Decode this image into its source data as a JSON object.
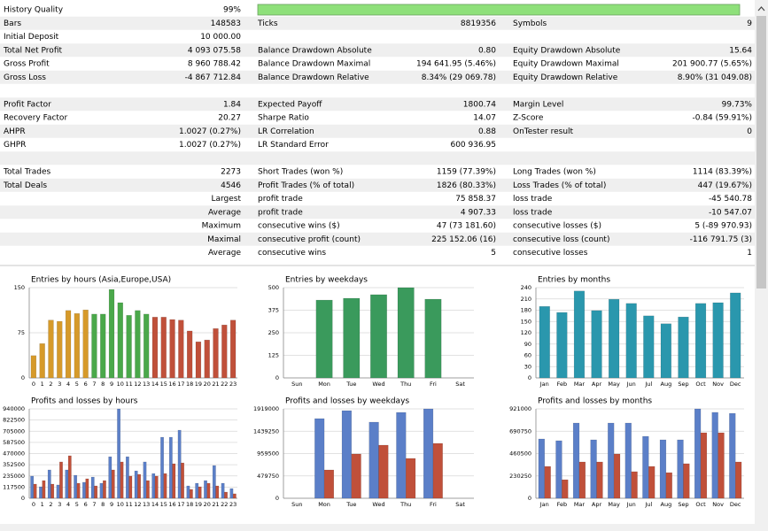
{
  "report": {
    "rows": [
      [
        [
          "History Quality",
          "99%"
        ]
      ],
      [
        [
          "Bars",
          "148583"
        ],
        [
          "Ticks",
          "8819356"
        ],
        [
          "Symbols",
          "9"
        ]
      ],
      [
        [
          "Initial Deposit",
          "10 000.00"
        ]
      ],
      [
        [
          "Total Net Profit",
          "4 093 075.58"
        ],
        [
          "Balance Drawdown Absolute",
          "0.80"
        ],
        [
          "Equity Drawdown Absolute",
          "15.64"
        ]
      ],
      [
        [
          "Gross Profit",
          "8 960 788.42"
        ],
        [
          "Balance Drawdown Maximal",
          "194 641.95 (5.46%)"
        ],
        [
          "Equity Drawdown Maximal",
          "201 900.77 (5.65%)"
        ]
      ],
      [
        [
          "Gross Loss",
          "-4 867 712.84"
        ],
        [
          "Balance Drawdown Relative",
          "8.34% (29 069.78)"
        ],
        [
          "Equity Drawdown Relative",
          "8.90% (31 049.08)"
        ]
      ],
      [],
      [
        [
          "Profit Factor",
          "1.84"
        ],
        [
          "Expected Payoff",
          "1800.74"
        ],
        [
          "Margin Level",
          "99.73%"
        ]
      ],
      [
        [
          "Recovery Factor",
          "20.27"
        ],
        [
          "Sharpe Ratio",
          "14.07"
        ],
        [
          "Z-Score",
          "-0.84 (59.91%)"
        ]
      ],
      [
        [
          "AHPR",
          "1.0027 (0.27%)"
        ],
        [
          "LR Correlation",
          "0.88"
        ],
        [
          "OnTester result",
          "0"
        ]
      ],
      [
        [
          "GHPR",
          "1.0027 (0.27%)"
        ],
        [
          "LR Standard Error",
          "600 936.95"
        ]
      ],
      [],
      [
        [
          "Total Trades",
          "2273"
        ],
        [
          "Short Trades (won %)",
          "1159 (77.39%)"
        ],
        [
          "Long Trades (won %)",
          "1114 (83.39%)"
        ]
      ],
      [
        [
          "Total Deals",
          "4546"
        ],
        [
          "Profit Trades (% of total)",
          "1826 (80.33%)"
        ],
        [
          "Loss Trades (% of total)",
          "447 (19.67%)"
        ]
      ],
      [
        [
          "Largest"
        ],
        [
          "profit trade",
          "75 858.37"
        ],
        [
          "loss trade",
          "-45 540.78"
        ]
      ],
      [
        [
          "Average"
        ],
        [
          "profit trade",
          "4 907.33"
        ],
        [
          "loss trade",
          "-10 547.07"
        ]
      ],
      [
        [
          "Maximum"
        ],
        [
          "consecutive wins ($)",
          "47 (73 181.60)"
        ],
        [
          "consecutive losses ($)",
          "5 (-89 970.93)"
        ]
      ],
      [
        [
          "Maximal"
        ],
        [
          "consecutive profit (count)",
          "225 152.06 (16)"
        ],
        [
          "consecutive loss (count)",
          "-116 791.75 (3)"
        ]
      ],
      [
        [
          "Average"
        ],
        [
          "consecutive wins",
          "5"
        ],
        [
          "consecutive losses",
          "1"
        ]
      ]
    ]
  },
  "chart_data": [
    {
      "type": "bar",
      "title": "Entries by hours (Asia,Europe,USA)",
      "categories": [
        "0",
        "1",
        "2",
        "3",
        "4",
        "5",
        "6",
        "7",
        "8",
        "9",
        "10",
        "11",
        "12",
        "13",
        "14",
        "15",
        "16",
        "17",
        "18",
        "19",
        "20",
        "21",
        "22",
        "23"
      ],
      "values": [
        37,
        57,
        96,
        94,
        112,
        107,
        113,
        106,
        106,
        147,
        125,
        104,
        112,
        106,
        101,
        101,
        97,
        96,
        78,
        60,
        63,
        82,
        88,
        96
      ],
      "colors": [
        "#d69a2a",
        "#d69a2a",
        "#d69a2a",
        "#d69a2a",
        "#d69a2a",
        "#d69a2a",
        "#d69a2a",
        "#4aa84a",
        "#4aa84a",
        "#4aa84a",
        "#4aa84a",
        "#4aa84a",
        "#4aa84a",
        "#4aa84a",
        "#c0503a",
        "#c0503a",
        "#c0503a",
        "#c0503a",
        "#c0503a",
        "#c0503a",
        "#c0503a",
        "#c0503a",
        "#c0503a",
        "#c0503a"
      ],
      "ylim": [
        0,
        150
      ],
      "yticks": [
        0,
        75,
        150
      ]
    },
    {
      "type": "bar",
      "title": "Entries by weekdays",
      "categories": [
        "Sun",
        "Mon",
        "Tue",
        "Wed",
        "Thu",
        "Fri",
        "Sat"
      ],
      "values": [
        0,
        431,
        441,
        461,
        500,
        436,
        0
      ],
      "color": "#3a9a5c",
      "ylim": [
        0,
        500
      ],
      "yticks": [
        0,
        125,
        250,
        375,
        500
      ]
    },
    {
      "type": "bar",
      "title": "Entries by months",
      "categories": [
        "Jan",
        "Feb",
        "Mar",
        "Apr",
        "May",
        "Jun",
        "Jul",
        "Aug",
        "Sep",
        "Oct",
        "Nov",
        "Dec"
      ],
      "values": [
        190,
        174,
        231,
        179,
        209,
        198,
        165,
        144,
        162,
        198,
        200,
        226
      ],
      "color": "#2a97ad",
      "ylim": [
        0,
        240
      ],
      "yticks": [
        0,
        30,
        60,
        90,
        120,
        150,
        180,
        210,
        240
      ]
    },
    {
      "type": "bar",
      "title": "Profits and losses by hours",
      "categories": [
        "0",
        "1",
        "2",
        "3",
        "4",
        "5",
        "6",
        "7",
        "8",
        "9",
        "10",
        "11",
        "12",
        "13",
        "14",
        "15",
        "16",
        "17",
        "18",
        "19",
        "20",
        "21",
        "22",
        "23"
      ],
      "series": [
        {
          "color": "#5b7fc8",
          "values": [
            233000,
            121000,
            298000,
            140000,
            298000,
            242000,
            168000,
            223000,
            158000,
            437000,
            940000,
            437000,
            288000,
            382000,
            260000,
            642000,
            642000,
            716000,
            130000,
            158000,
            186000,
            344000,
            158000,
            102000
          ]
        },
        {
          "color": "#c0503a",
          "values": [
            149000,
            186000,
            149000,
            382000,
            447000,
            158000,
            205000,
            130000,
            186000,
            298000,
            382000,
            233000,
            251000,
            186000,
            233000,
            260000,
            363000,
            372000,
            93000,
            121000,
            158000,
            130000,
            65000,
            47000
          ]
        }
      ],
      "ylim": [
        0,
        940000
      ],
      "yticks": [
        0,
        117500,
        235000,
        352500,
        470000,
        587500,
        705000,
        822500,
        940000
      ]
    },
    {
      "type": "bar",
      "title": "Profits and losses by weekdays",
      "categories": [
        "Sun",
        "Mon",
        "Tue",
        "Wed",
        "Thu",
        "Fri",
        "Sat"
      ],
      "series": [
        {
          "color": "#5b7fc8",
          "values": [
            0,
            1710000,
            1881000,
            1634000,
            1843000,
            1919000,
            0
          ]
        },
        {
          "color": "#c0503a",
          "values": [
            0,
            608000,
            950000,
            1140000,
            855000,
            1178000,
            0
          ]
        }
      ],
      "ylim": [
        0,
        1919000
      ],
      "yticks": [
        0,
        479750,
        959500,
        1439250,
        1919000
      ]
    },
    {
      "type": "bar",
      "title": "Profits and losses by months",
      "categories": [
        "Jan",
        "Feb",
        "Mar",
        "Apr",
        "May",
        "Jun",
        "Jul",
        "Aug",
        "Sep",
        "Oct",
        "Nov",
        "Dec"
      ],
      "series": [
        {
          "color": "#5b7fc8",
          "values": [
            611000,
            593000,
            775000,
            602000,
            775000,
            775000,
            638000,
            602000,
            602000,
            921000,
            885000,
            875000
          ]
        },
        {
          "color": "#c0503a",
          "values": [
            328000,
            191000,
            374000,
            374000,
            456000,
            274000,
            328000,
            264000,
            356000,
            675000,
            675000,
            374000
          ]
        }
      ],
      "ylim": [
        0,
        921000
      ],
      "yticks": [
        0,
        230250,
        460500,
        690750,
        921000
      ]
    }
  ]
}
